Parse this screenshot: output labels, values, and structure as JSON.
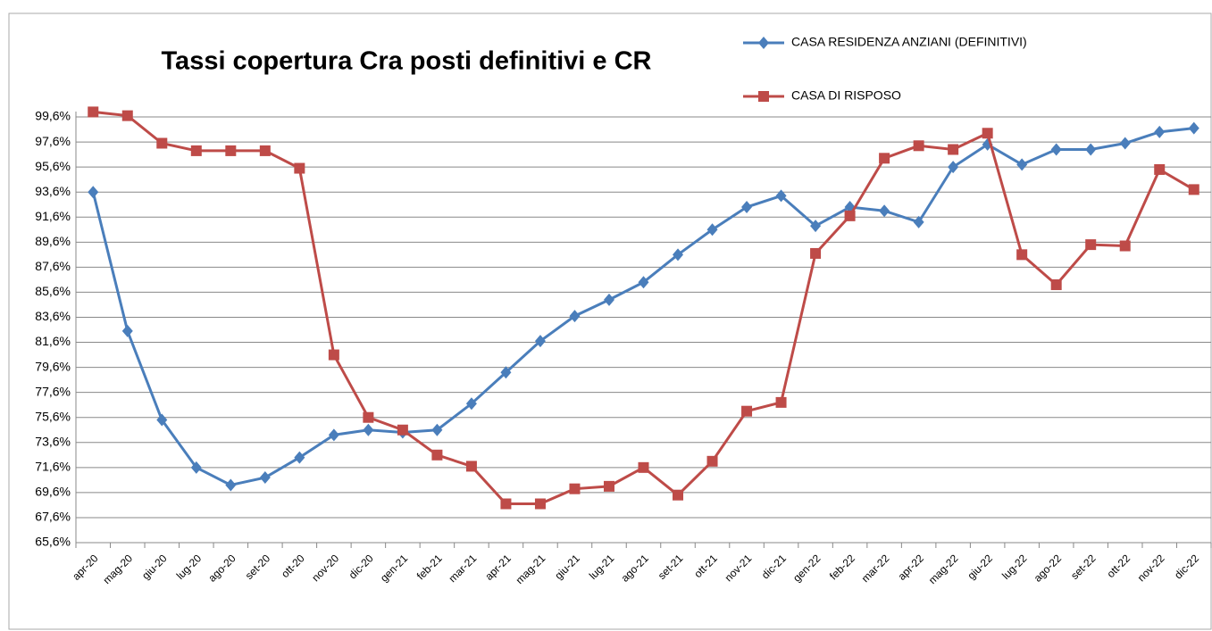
{
  "chart_data": {
    "type": "line",
    "title": "Tassi copertura Cra posti definitivi e CR",
    "categories": [
      "apr-20",
      "mag-20",
      "giu-20",
      "lug-20",
      "ago-20",
      "set-20",
      "ott-20",
      "nov-20",
      "dic-20",
      "gen-21",
      "feb-21",
      "mar-21",
      "apr-21",
      "mag-21",
      "giu-21",
      "lug-21",
      "ago-21",
      "set-21",
      "ott-21",
      "nov-21",
      "dic-21",
      "gen-22",
      "feb-22",
      "mar-22",
      "apr-22",
      "mag-22",
      "giu-22",
      "lug-22",
      "ago-22",
      "set-22",
      "ott-22",
      "nov-22",
      "dic-22"
    ],
    "series": [
      {
        "name": "CASA RESIDENZA ANZIANI (DEFINITIVI)",
        "color": "#4a7ebb",
        "marker": "diamond",
        "values": [
          93.6,
          82.5,
          75.4,
          71.6,
          70.2,
          70.8,
          72.4,
          74.2,
          74.6,
          74.4,
          74.6,
          76.7,
          79.2,
          81.7,
          83.7,
          85.0,
          86.4,
          88.6,
          90.6,
          92.4,
          93.3,
          90.9,
          92.4,
          92.1,
          91.2,
          95.6,
          97.4,
          95.8,
          97.0,
          97.0,
          97.5,
          98.4,
          98.7
        ]
      },
      {
        "name": "CASA DI RISPOSO",
        "color": "#be4b48",
        "marker": "square",
        "values": [
          100.0,
          99.7,
          97.5,
          96.9,
          96.9,
          96.9,
          95.5,
          80.6,
          75.6,
          74.6,
          72.6,
          71.7,
          68.7,
          68.7,
          69.9,
          70.1,
          71.6,
          69.4,
          72.1,
          76.1,
          76.8,
          88.7,
          91.7,
          96.3,
          97.3,
          97.0,
          98.3,
          88.6,
          86.2,
          89.4,
          89.3,
          95.4,
          93.8
        ]
      }
    ],
    "ylim": [
      65.6,
      100.6
    ],
    "yticks": [
      {
        "value": 65.6,
        "label": "65,6%"
      },
      {
        "value": 67.6,
        "label": "67,6%"
      },
      {
        "value": 69.6,
        "label": "69,6%"
      },
      {
        "value": 71.6,
        "label": "71,6%"
      },
      {
        "value": 73.6,
        "label": "73,6%"
      },
      {
        "value": 75.6,
        "label": "75,6%"
      },
      {
        "value": 77.6,
        "label": "77,6%"
      },
      {
        "value": 79.6,
        "label": "79,6%"
      },
      {
        "value": 81.6,
        "label": "81,6%"
      },
      {
        "value": 83.6,
        "label": "83,6%"
      },
      {
        "value": 85.6,
        "label": "85,6%"
      },
      {
        "value": 87.6,
        "label": "87,6%"
      },
      {
        "value": 89.6,
        "label": "89,6%"
      },
      {
        "value": 91.6,
        "label": "91,6%"
      },
      {
        "value": 93.6,
        "label": "93,6%"
      },
      {
        "value": 95.6,
        "label": "95,6%"
      },
      {
        "value": 97.6,
        "label": "97,6%"
      },
      {
        "value": 99.6,
        "label": "99,6%"
      }
    ],
    "grid": true
  }
}
